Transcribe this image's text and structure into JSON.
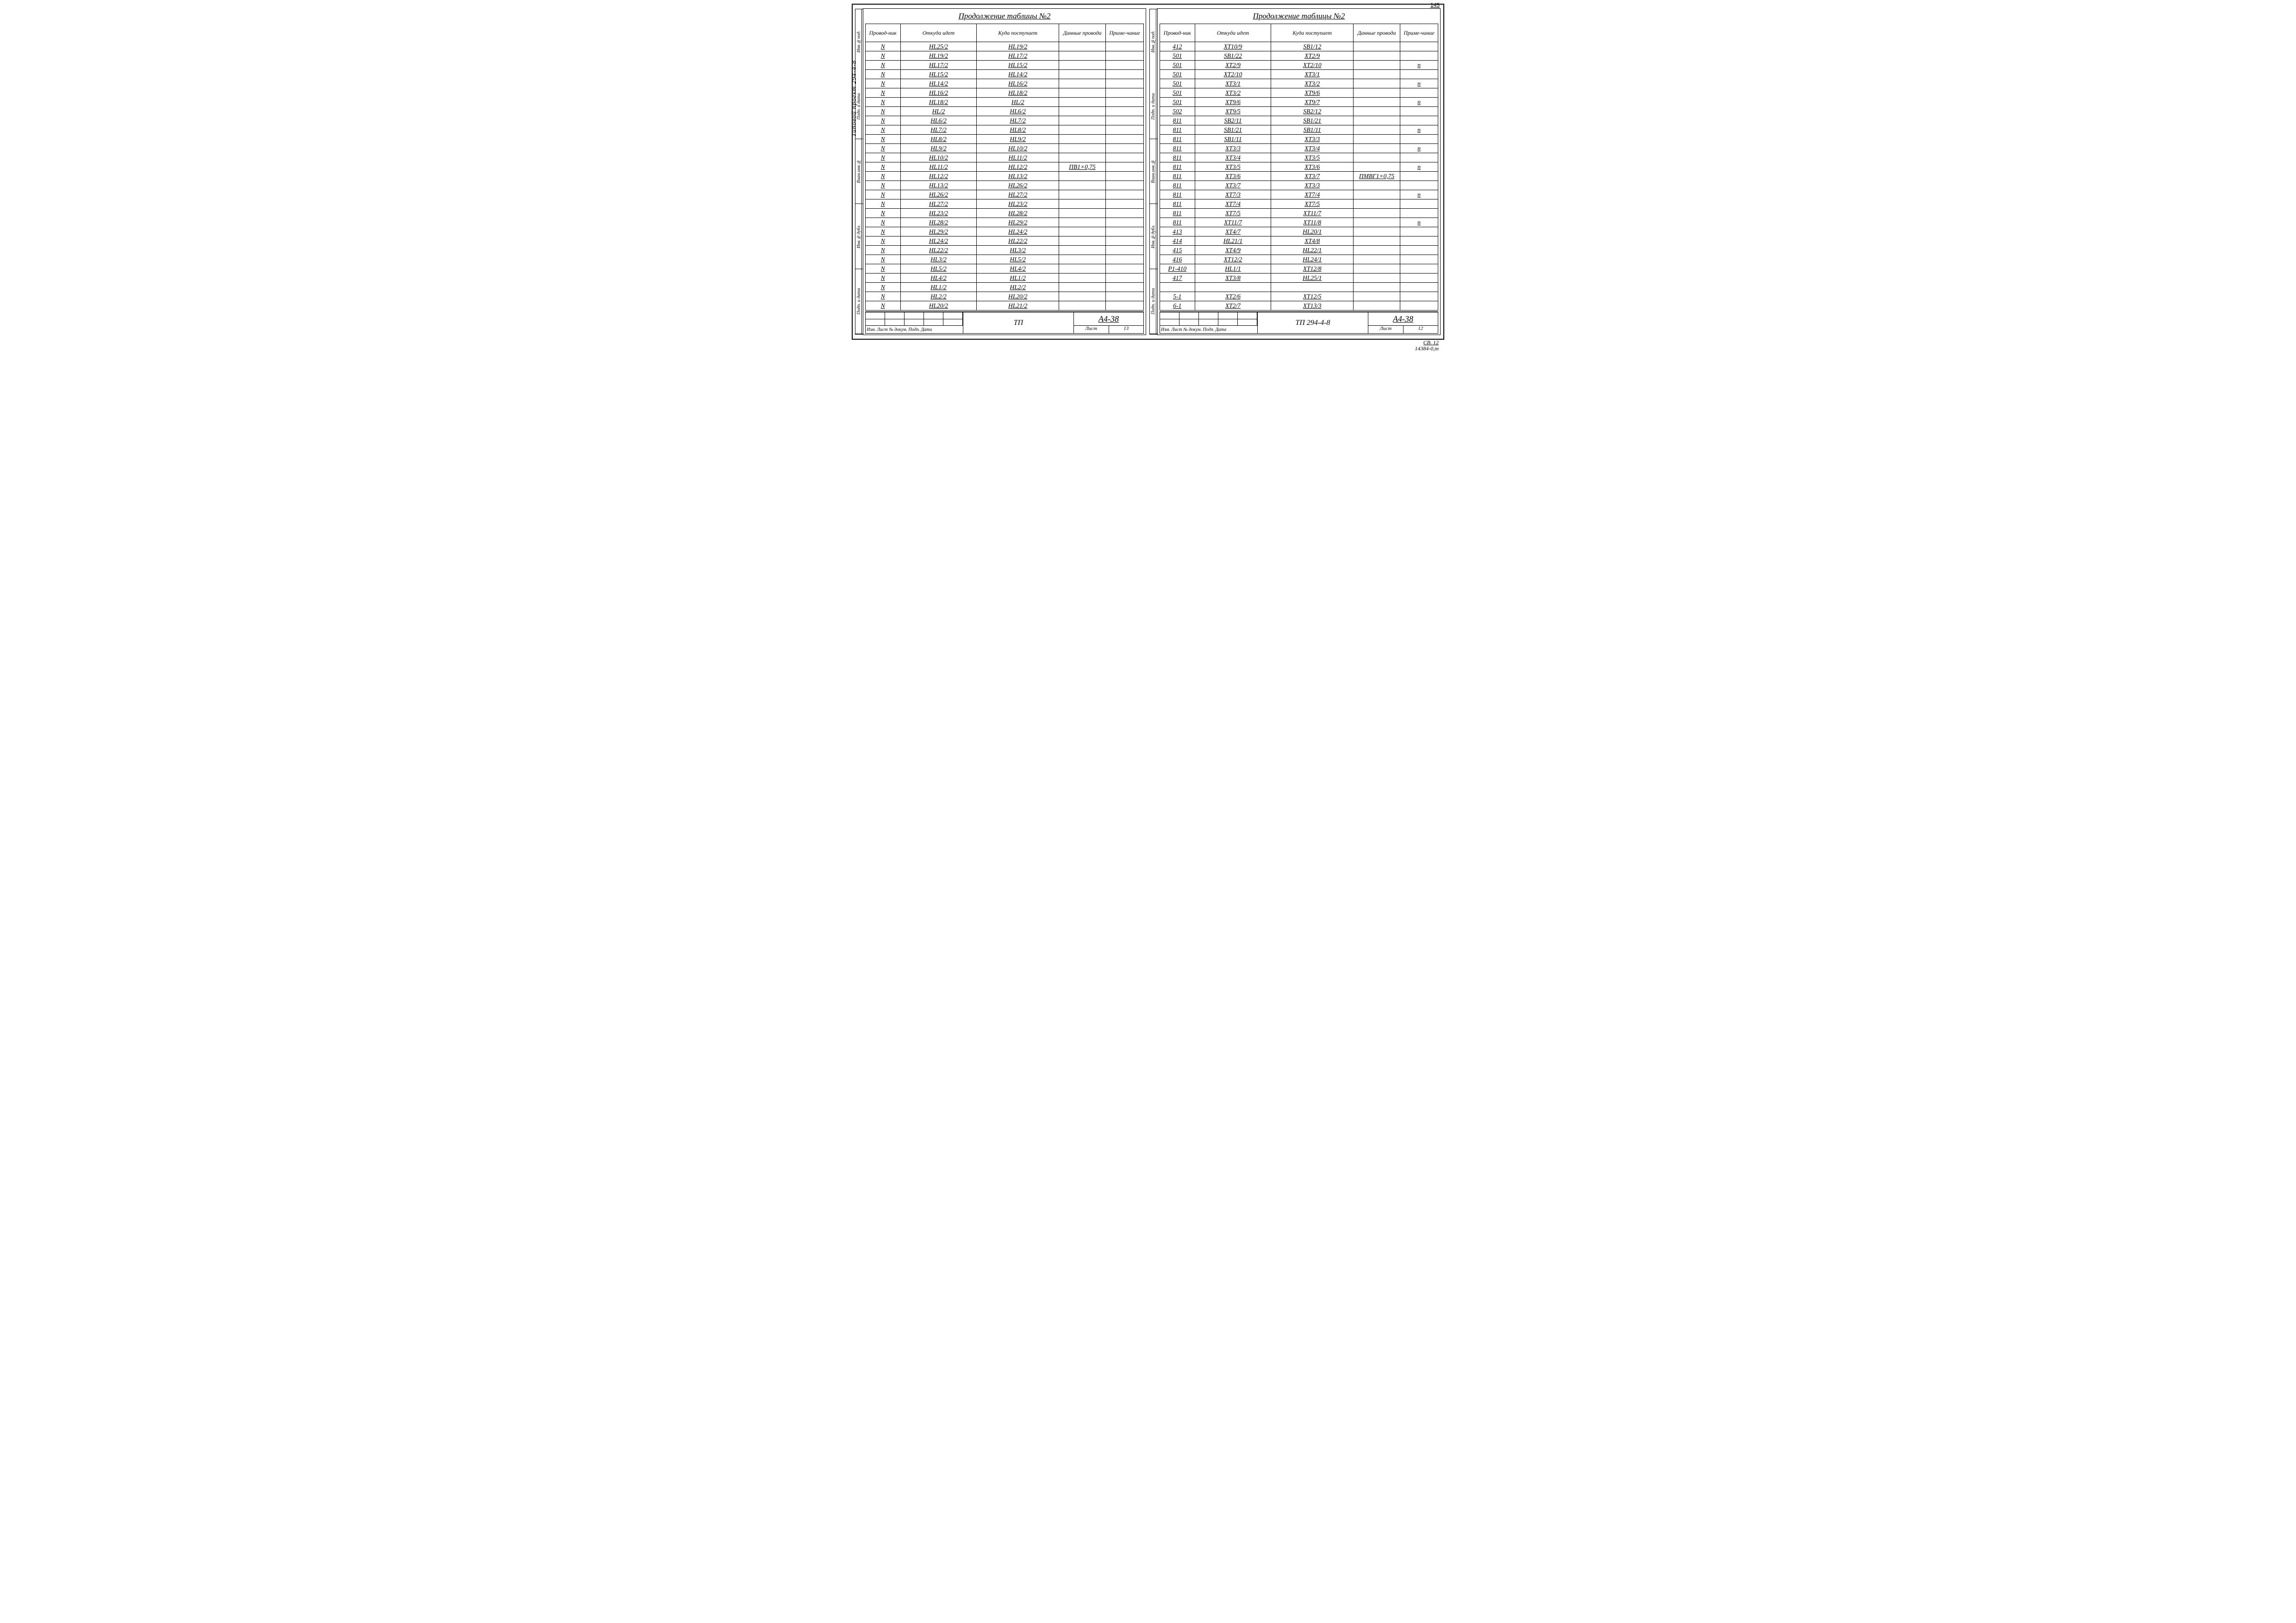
{
  "page_number": "145",
  "title_left": "Продолжение таблицы №2",
  "title_right": "Продолжение таблицы №2",
  "left_vertical_label": "Типовой проект 294-4-8",
  "side_labels": [
    "Инв.№под.",
    "Подп. и дата",
    "Взам.инв.№",
    "Инв.№дубл.",
    "Подп. и дата"
  ],
  "columns": [
    {
      "key": "c1",
      "label": "Провод-ник",
      "w": "11%"
    },
    {
      "key": "c2",
      "label": "Откуда идет",
      "w": "25%"
    },
    {
      "key": "c3",
      "label": "Куда поступает",
      "w": "27%"
    },
    {
      "key": "c4",
      "label": "Данные провода",
      "w": "15%"
    },
    {
      "key": "c5",
      "label": "Приме-чание",
      "w": "12%"
    }
  ],
  "rows_left": [
    [
      "N",
      "HL25/2",
      "HL19/2",
      "",
      ""
    ],
    [
      "N",
      "HL19/2",
      "HL17/2",
      "",
      ""
    ],
    [
      "N",
      "HL17/2",
      "HL15/2",
      "",
      ""
    ],
    [
      "N",
      "HL15/2",
      "HL14/2",
      "",
      ""
    ],
    [
      "N",
      "HL14/2",
      "HL16/2",
      "",
      ""
    ],
    [
      "N",
      "HL16/2",
      "HL18/2",
      "",
      ""
    ],
    [
      "N",
      "HL18/2",
      "HL/2",
      "",
      ""
    ],
    [
      "N",
      "HL/2",
      "HL6/2",
      "",
      ""
    ],
    [
      "N",
      "HL6/2",
      "HL7/2",
      "",
      ""
    ],
    [
      "N",
      "HL7/2",
      "HL8/2",
      "",
      ""
    ],
    [
      "N",
      "HL8/2",
      "HL9/2",
      "",
      ""
    ],
    [
      "N",
      "HL9/2",
      "HL10/2",
      "",
      ""
    ],
    [
      "N",
      "HL10/2",
      "HL11/2",
      "",
      ""
    ],
    [
      "N",
      "HL11/2",
      "HL12/2",
      "ПВ1×0,75",
      ""
    ],
    [
      "N",
      "HL12/2",
      "HL13/2",
      "",
      ""
    ],
    [
      "N",
      "HL13/2",
      "HL26/2",
      "",
      ""
    ],
    [
      "N",
      "HL26/2",
      "HL27/2",
      "",
      ""
    ],
    [
      "N",
      "HL27/2",
      "HL23/2",
      "",
      ""
    ],
    [
      "N",
      "HL23/2",
      "HL28/2",
      "",
      ""
    ],
    [
      "N",
      "HL28/2",
      "HL29/2",
      "",
      ""
    ],
    [
      "N",
      "HL29/2",
      "HL24/2",
      "",
      ""
    ],
    [
      "N",
      "HL24/2",
      "HL22/2",
      "",
      ""
    ],
    [
      "N",
      "HL22/2",
      "HL3/2",
      "",
      ""
    ],
    [
      "N",
      "HL3/2",
      "HL5/2",
      "",
      ""
    ],
    [
      "N",
      "HL5/2",
      "HL4/2",
      "",
      ""
    ],
    [
      "N",
      "HL4/2",
      "HL1/2",
      "",
      ""
    ],
    [
      "N",
      "HL1/2",
      "HL2/2",
      "",
      ""
    ],
    [
      "N",
      "HL2/2",
      "HL20/2",
      "",
      ""
    ],
    [
      "N",
      "HL20/2",
      "HL21/2",
      "",
      ""
    ]
  ],
  "rows_right": [
    [
      "412",
      "XT10/9",
      "SB1/12",
      "",
      ""
    ],
    [
      "501",
      "SB1/22",
      "XT2/9",
      "",
      ""
    ],
    [
      "501",
      "XT2/9",
      "XT2/10",
      "",
      "п"
    ],
    [
      "501",
      "XT2/10",
      "XT3/1",
      "",
      ""
    ],
    [
      "501",
      "XT3/1",
      "XT3/2",
      "",
      "п"
    ],
    [
      "501",
      "XT3/2",
      "XT9/6",
      "",
      ""
    ],
    [
      "501",
      "XT9/6",
      "XT9/7",
      "",
      "п"
    ],
    [
      "502",
      "XT9/5",
      "SB2/12",
      "",
      ""
    ],
    [
      "811",
      "SB2/11",
      "SB1/21",
      "",
      ""
    ],
    [
      "811",
      "SB1/21",
      "SB1/11",
      "",
      "п"
    ],
    [
      "811",
      "SB1/11",
      "XT3/3",
      "",
      ""
    ],
    [
      "811",
      "XT3/3",
      "XT3/4",
      "",
      "п"
    ],
    [
      "811",
      "XT3/4",
      "XT3/5",
      "",
      ""
    ],
    [
      "811",
      "XT3/5",
      "XT3/6",
      "",
      "п"
    ],
    [
      "811",
      "XT3/6",
      "XT3/7",
      "ПМВГ1×0,75",
      ""
    ],
    [
      "811",
      "XT3/7",
      "XT3/3",
      "",
      ""
    ],
    [
      "811",
      "XT7/3",
      "XT7/4",
      "",
      "п"
    ],
    [
      "811",
      "XT7/4",
      "XT7/5",
      "",
      ""
    ],
    [
      "811",
      "XT7/5",
      "XT11/7",
      "",
      ""
    ],
    [
      "811",
      "XT11/7",
      "XT11/8",
      "",
      "п"
    ],
    [
      "413",
      "XT4/7",
      "HL20/1",
      "",
      ""
    ],
    [
      "414",
      "HL21/1",
      "XT4/8",
      "",
      ""
    ],
    [
      "415",
      "XT4/9",
      "HL22/1",
      "",
      ""
    ],
    [
      "416",
      "XT12/2",
      "HL24/1",
      "",
      ""
    ],
    [
      "P1-410",
      "HL1/1",
      "XT12/8",
      "",
      ""
    ],
    [
      "417",
      "XT3/8",
      "HL25/1",
      "",
      ""
    ],
    [
      "",
      "",
      "",
      "",
      ""
    ],
    [
      "5-1",
      "XT2/6",
      "XT12/5",
      "",
      ""
    ],
    [
      "6-1",
      "XT2/7",
      "XT13/3",
      "",
      ""
    ]
  ],
  "stamp_left": {
    "rev_label": "Изм. Лист № докум. Подп. Дата",
    "mid": "ТП",
    "code": "А4-38",
    "sheet_label": "Лист",
    "sheet": "13"
  },
  "stamp_right": {
    "rev_label": "Изм. Лист № докум. Подп. Дата",
    "mid": "ТП   294-4-8",
    "code": "А4-38",
    "sheet_label": "Лист",
    "sheet": "12"
  },
  "footer_line1": "СВ. 12",
  "footer_line2": "14384-0,т"
}
